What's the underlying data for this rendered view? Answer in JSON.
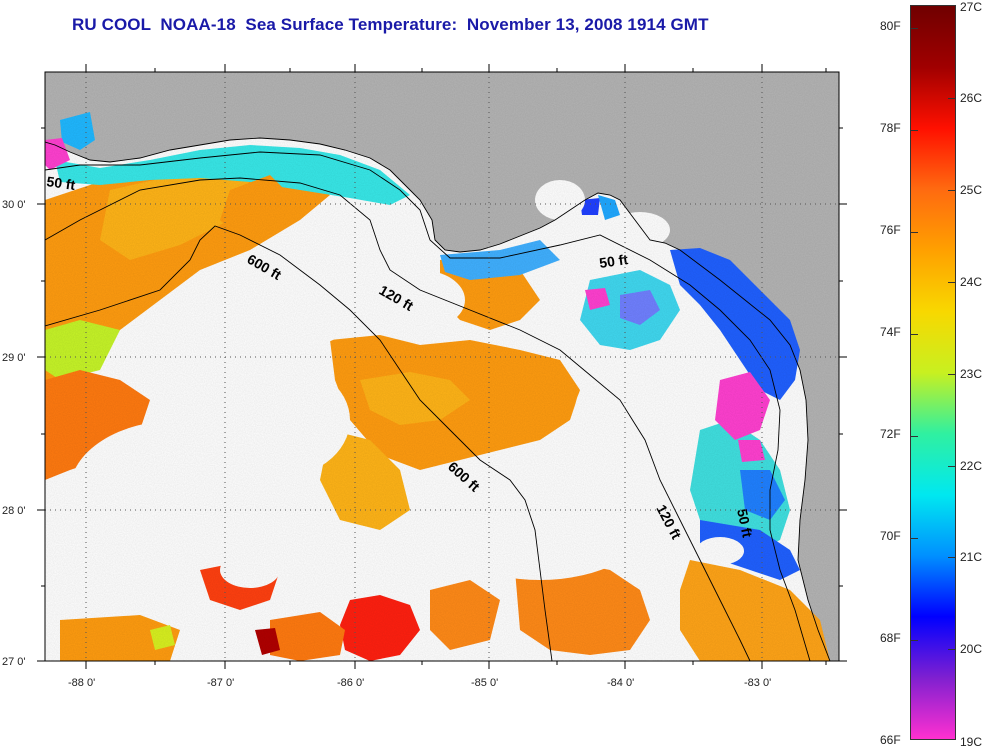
{
  "title": "RU COOL  NOAA-18  Sea Surface Temperature:  November 13, 2008 1914 GMT",
  "axes": {
    "x_ticks": [
      "-88 0'",
      "-87 0'",
      "-86 0'",
      "-85 0'",
      "-84 0'",
      "-83 0'"
    ],
    "y_ticks": [
      "30 0'",
      "29 0'",
      "28 0'",
      "27 0'"
    ]
  },
  "contours": [
    {
      "label": "50 ft"
    },
    {
      "label": "600 ft"
    },
    {
      "label": "120 ft"
    },
    {
      "label": "50 ft"
    },
    {
      "label": "600 ft"
    },
    {
      "label": "120 ft"
    },
    {
      "label": "50 ft"
    }
  ],
  "colorbar": {
    "fahrenheit_labels": [
      "80F",
      "78F",
      "76F",
      "74F",
      "72F",
      "70F",
      "68F",
      "66F"
    ],
    "celsius_labels": [
      "27C",
      "26C",
      "25C",
      "24C",
      "23C",
      "22C",
      "21C",
      "20C",
      "19C"
    ],
    "stops": [
      "#ff30d0",
      "#8020d0",
      "#0000ff",
      "#0090ff",
      "#00e8f0",
      "#30f0a0",
      "#c8f020",
      "#f8d800",
      "#ffa000",
      "#ff6a10",
      "#ff1000",
      "#a00000",
      "#700000"
    ]
  },
  "colors": {
    "title": "#1a1aa8",
    "land": "#b4b4b4",
    "clouds": "#ffffff"
  }
}
